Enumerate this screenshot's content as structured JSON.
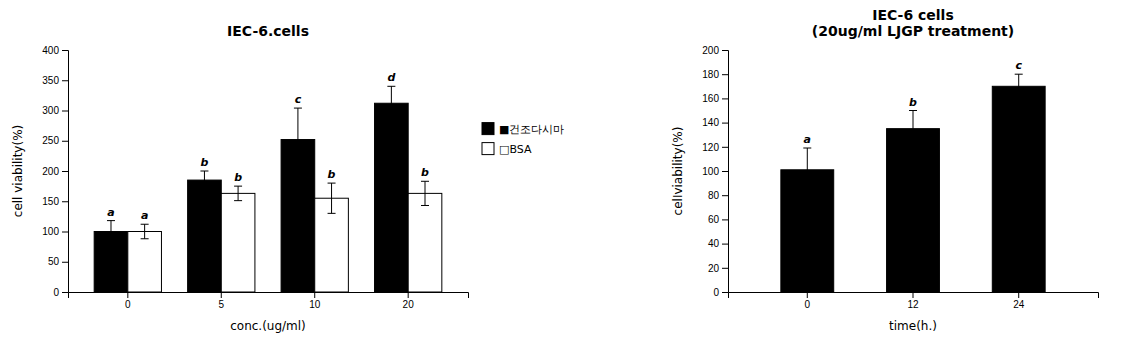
{
  "chart_data": [
    {
      "type": "bar",
      "title": "IEC-6.cells",
      "x_label": "conc.(ug/ml)",
      "y_label": "cell viability(%)",
      "categories": [
        "0",
        "5",
        "10",
        "20"
      ],
      "series": [
        {
          "name": "■건조다시마",
          "color": "#000000",
          "values": [
            100,
            185,
            252,
            312
          ],
          "errors": [
            18,
            15,
            52,
            28
          ],
          "labels": [
            "a",
            "b",
            "c",
            "d"
          ]
        },
        {
          "name": "□BSA",
          "color": "#ffffff",
          "values": [
            100,
            163,
            155,
            163
          ],
          "errors": [
            12,
            12,
            25,
            20
          ],
          "labels": [
            "a",
            "b",
            "b",
            "b"
          ]
        }
      ],
      "ylim": [
        0,
        400
      ],
      "yticks": [
        0,
        50,
        100,
        150,
        200,
        250,
        300,
        350,
        400
      ],
      "grid": false,
      "legend": "right"
    },
    {
      "type": "bar",
      "title": "IEC-6 cells\n(20ug/ml LJGP treatment)",
      "x_label": "time(h.)",
      "y_label": "celIviability(%)",
      "categories": [
        "0",
        "12",
        "24"
      ],
      "values": [
        101,
        135,
        170
      ],
      "errors": [
        18,
        15,
        10
      ],
      "labels": [
        "a",
        "b",
        "c"
      ],
      "color": "#000000",
      "ylim": [
        0,
        200
      ],
      "yticks": [
        0,
        20,
        40,
        60,
        80,
        100,
        120,
        140,
        160,
        180,
        200
      ],
      "grid": false
    }
  ]
}
